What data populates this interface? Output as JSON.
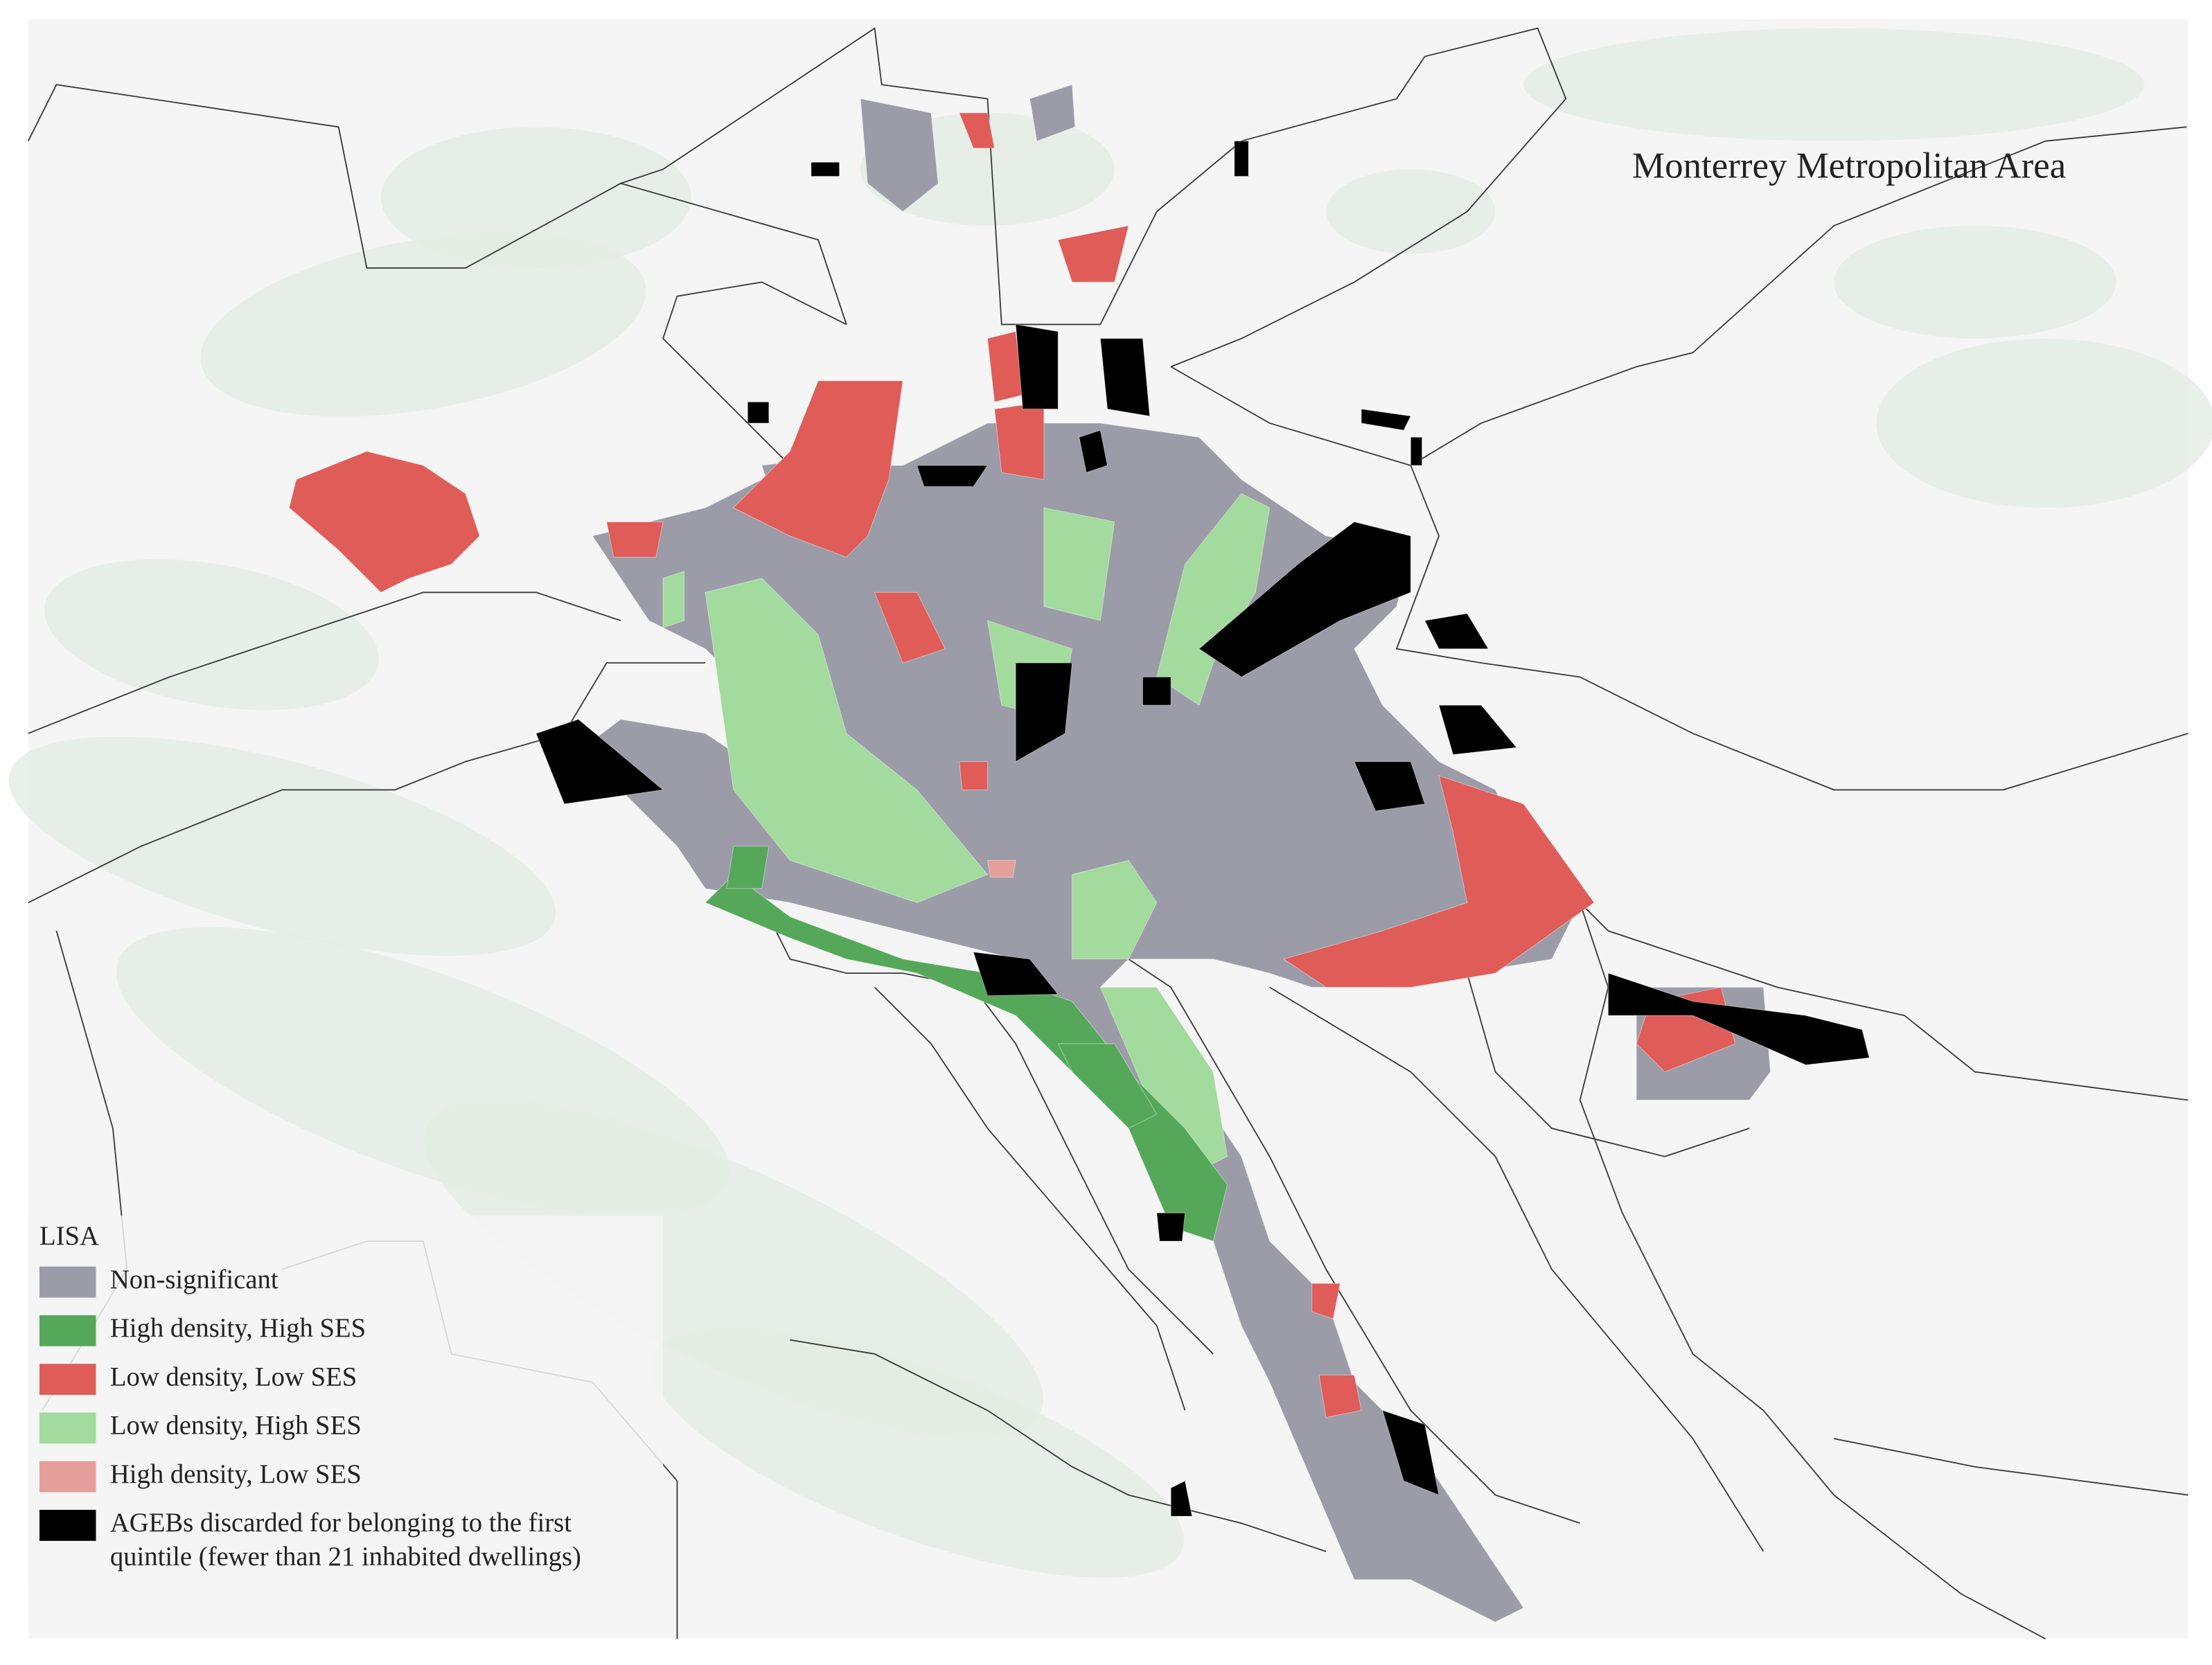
{
  "map": {
    "title": "Monterrey Metropolitan Area",
    "legend": {
      "title": "LISA",
      "items": [
        {
          "label": [
            "Non-significant"
          ],
          "color": "#9b9ca8"
        },
        {
          "label": [
            "High density, High SES"
          ],
          "color": "#55a85a"
        },
        {
          "label": [
            "Low density, Low SES"
          ],
          "color": "#e05c58"
        },
        {
          "label": [
            "Low density, High SES"
          ],
          "color": "#a3da9d"
        },
        {
          "label": [
            "High density, Low SES"
          ],
          "color": "#e69e9a"
        },
        {
          "label": [
            "AGEBs discarded for belonging to the first",
            "quintile (fewer than 21 inhabited dwellings)"
          ],
          "color": "#000000"
        }
      ]
    }
  }
}
